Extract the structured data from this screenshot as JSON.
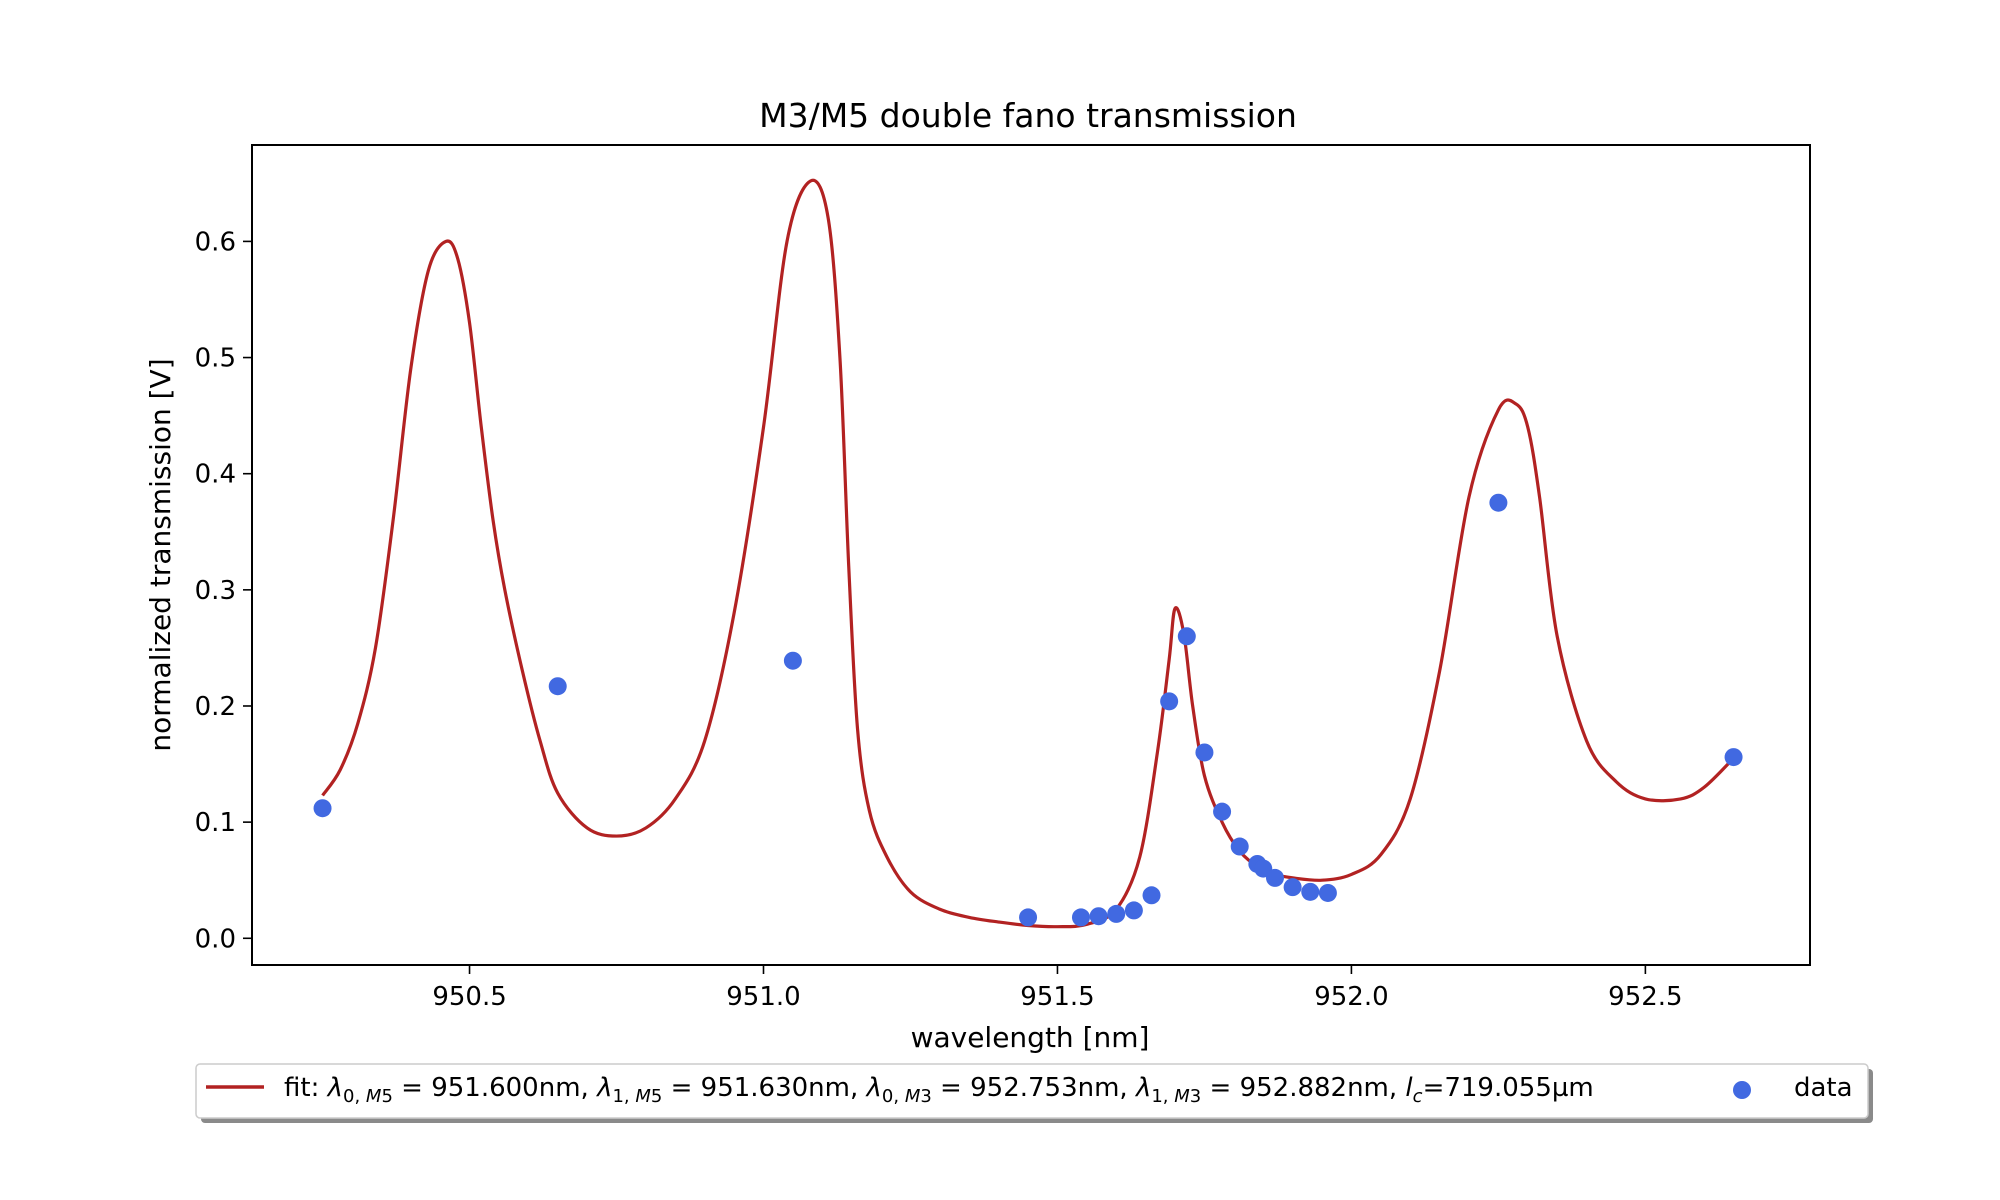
{
  "chart_data": {
    "type": "scatter",
    "title": "M3/M5 double fano transmission",
    "xlabel": "wavelength [nm]",
    "ylabel": "normalized transmission [V]",
    "xlim": [
      950.13,
      952.78
    ],
    "ylim": [
      -0.023,
      0.683
    ],
    "xticks": [
      950.5,
      951.0,
      951.5,
      952.0,
      952.5
    ],
    "xtick_labels": [
      "950.5",
      "951.0",
      "951.5",
      "952.0",
      "952.5"
    ],
    "yticks": [
      0.0,
      0.1,
      0.2,
      0.3,
      0.4,
      0.5,
      0.6
    ],
    "ytick_labels": [
      "0.0",
      "0.1",
      "0.2",
      "0.3",
      "0.4",
      "0.5",
      "0.6"
    ],
    "grid": false,
    "legend_position": "below the plot",
    "series": [
      {
        "name": "fit: λ0,M5 = 951.600nm, λ1,M5 = 951.630nm, λ0,M3 = 952.753nm, λ1,M3 = 952.882nm, lc=719.055µm",
        "kind": "line",
        "color": "#b22222",
        "x": [
          950.25,
          950.28,
          950.31,
          950.34,
          950.37,
          950.4,
          950.43,
          950.46,
          950.48,
          950.5,
          950.52,
          950.54,
          950.56,
          950.59,
          950.62,
          950.65,
          950.7,
          950.75,
          950.8,
          950.85,
          950.9,
          950.95,
          951.0,
          951.04,
          951.08,
          951.11,
          951.13,
          951.145,
          951.16,
          951.18,
          951.21,
          951.25,
          951.3,
          951.35,
          951.4,
          951.45,
          951.5,
          951.55,
          951.6,
          951.64,
          951.67,
          951.69,
          951.7,
          951.715,
          951.73,
          951.75,
          951.78,
          951.81,
          951.84,
          951.87,
          951.9,
          951.95,
          952.0,
          952.05,
          952.1,
          952.15,
          952.2,
          952.25,
          952.28,
          952.3,
          952.32,
          952.35,
          952.4,
          952.45,
          952.5,
          952.56,
          952.6,
          952.65
        ],
        "y": [
          0.123,
          0.145,
          0.185,
          0.25,
          0.36,
          0.49,
          0.575,
          0.6,
          0.585,
          0.53,
          0.44,
          0.36,
          0.3,
          0.23,
          0.17,
          0.125,
          0.095,
          0.088,
          0.095,
          0.12,
          0.17,
          0.28,
          0.44,
          0.6,
          0.652,
          0.62,
          0.5,
          0.32,
          0.18,
          0.11,
          0.07,
          0.04,
          0.025,
          0.018,
          0.014,
          0.011,
          0.01,
          0.012,
          0.025,
          0.07,
          0.16,
          0.24,
          0.284,
          0.262,
          0.2,
          0.14,
          0.1,
          0.075,
          0.062,
          0.055,
          0.052,
          0.05,
          0.055,
          0.072,
          0.12,
          0.23,
          0.38,
          0.455,
          0.46,
          0.44,
          0.38,
          0.26,
          0.17,
          0.135,
          0.12,
          0.12,
          0.13,
          0.155
        ]
      },
      {
        "name": "data",
        "kind": "scatter",
        "color": "#4169e1",
        "x": [
          950.25,
          950.65,
          951.05,
          951.45,
          951.54,
          951.57,
          951.6,
          951.63,
          951.66,
          951.69,
          951.72,
          951.75,
          951.78,
          951.81,
          951.84,
          951.85,
          951.87,
          951.9,
          951.93,
          951.96,
          952.25,
          952.65
        ],
        "y": [
          0.112,
          0.217,
          0.239,
          0.018,
          0.018,
          0.019,
          0.021,
          0.024,
          0.037,
          0.204,
          0.26,
          0.16,
          0.109,
          0.079,
          0.064,
          0.06,
          0.052,
          0.044,
          0.04,
          0.039,
          0.375,
          0.156
        ]
      }
    ]
  }
}
